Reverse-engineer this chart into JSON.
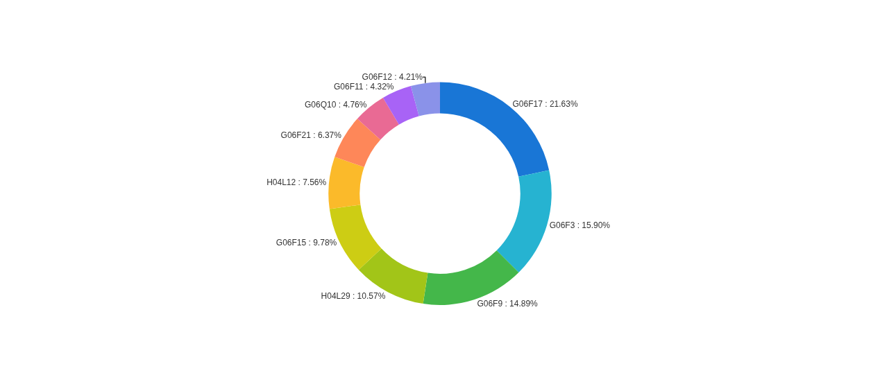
{
  "chart_data": {
    "type": "donut",
    "categories": [
      "G06F17",
      "G06F3",
      "G06F9",
      "H04L29",
      "G06F15",
      "H04L12",
      "G06F21",
      "G06Q10",
      "G06F11",
      "G06F12"
    ],
    "values": [
      21.63,
      15.9,
      14.89,
      10.57,
      9.78,
      7.56,
      6.37,
      4.76,
      4.32,
      4.21
    ],
    "value_labels": [
      "21.63%",
      "15.90%",
      "14.89%",
      "10.57%",
      "9.78%",
      "7.56%",
      "6.37%",
      "4.76%",
      "4.32%",
      "4.21%"
    ],
    "colors": [
      "#1976d6",
      "#26b3d1",
      "#44b74a",
      "#a2c518",
      "#cdcd14",
      "#fbba2a",
      "#fe8759",
      "#e96a94",
      "#a863f6",
      "#8a92e9"
    ],
    "legend": false
  }
}
